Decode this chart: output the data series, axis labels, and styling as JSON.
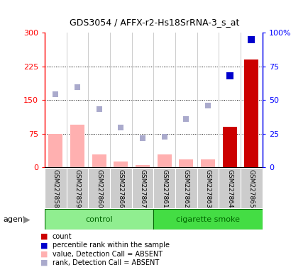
{
  "title": "GDS3054 / AFFX-r2-Hs18SrRNA-3_s_at",
  "samples": [
    "GSM227858",
    "GSM227859",
    "GSM227860",
    "GSM227866",
    "GSM227867",
    "GSM227861",
    "GSM227862",
    "GSM227863",
    "GSM227864",
    "GSM227865"
  ],
  "count_values": [
    0,
    0,
    0,
    0,
    0,
    0,
    0,
    0,
    90,
    240
  ],
  "count_is_present": [
    false,
    false,
    false,
    false,
    false,
    false,
    false,
    false,
    true,
    true
  ],
  "absent_value": [
    75,
    95,
    28,
    13,
    5,
    28,
    17,
    18,
    0,
    0
  ],
  "absent_rank": [
    163,
    178,
    130,
    88,
    65,
    68,
    108,
    138,
    0,
    0
  ],
  "percentile_rank_right": [
    null,
    null,
    null,
    null,
    null,
    null,
    null,
    null,
    68,
    95
  ],
  "ylim_left": [
    0,
    300
  ],
  "yticks_left": [
    0,
    75,
    150,
    225,
    300
  ],
  "yticks_left_labels": [
    "0",
    "75",
    "150",
    "225",
    "300"
  ],
  "yticks_right": [
    0,
    25,
    50,
    75,
    100
  ],
  "yticks_right_labels": [
    "0",
    "25",
    "50",
    "75",
    "100%"
  ],
  "absent_bar_color": "#ffb0b0",
  "absent_rank_color": "#aaaacc",
  "count_present_color": "#cc0000",
  "blue_marker_color": "#0000cc",
  "grid_yticks": [
    75,
    150,
    225
  ],
  "control_color": "#90ee90",
  "smoke_color": "#44dd44",
  "group_border_color": "#006600",
  "group_text_color": "#006600"
}
